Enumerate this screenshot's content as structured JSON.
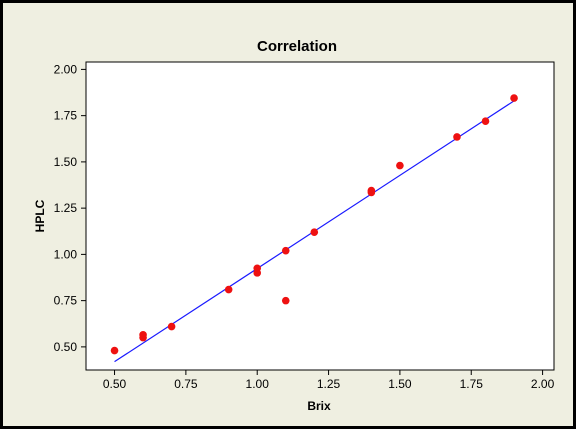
{
  "chart_data": {
    "type": "scatter",
    "title": "Correlation",
    "xlabel": "Brix",
    "ylabel": "HPLC",
    "xlim": [
      0.4,
      2.04
    ],
    "ylim": [
      0.375,
      2.04
    ],
    "x_ticks": [
      "0.50",
      "0.75",
      "1.00",
      "1.25",
      "1.50",
      "1.75",
      "2.00"
    ],
    "y_ticks": [
      "0.50",
      "0.75",
      "1.00",
      "1.25",
      "1.50",
      "1.75",
      "2.00"
    ],
    "grid": false,
    "legend": "none",
    "colors": {
      "outer_background": "#efefe1",
      "plot_background": "#ffffff",
      "points": "#ee1111",
      "fit_line": "#1a1aff"
    },
    "series": [
      {
        "points": [
          {
            "x": 0.5,
            "y": 0.48
          },
          {
            "x": 0.6,
            "y": 0.55
          },
          {
            "x": 0.6,
            "y": 0.565
          },
          {
            "x": 0.7,
            "y": 0.61
          },
          {
            "x": 0.9,
            "y": 0.81
          },
          {
            "x": 1.0,
            "y": 0.9
          },
          {
            "x": 1.0,
            "y": 0.925
          },
          {
            "x": 1.1,
            "y": 1.02
          },
          {
            "x": 1.1,
            "y": 0.75
          },
          {
            "x": 1.2,
            "y": 1.12
          },
          {
            "x": 1.4,
            "y": 1.335
          },
          {
            "x": 1.4,
            "y": 1.345
          },
          {
            "x": 1.5,
            "y": 1.48
          },
          {
            "x": 1.7,
            "y": 1.635
          },
          {
            "x": 1.8,
            "y": 1.72
          },
          {
            "x": 1.9,
            "y": 1.845
          }
        ]
      }
    ],
    "fit_line": {
      "x": [
        0.5,
        1.9
      ],
      "y": [
        0.42,
        1.83
      ]
    }
  }
}
